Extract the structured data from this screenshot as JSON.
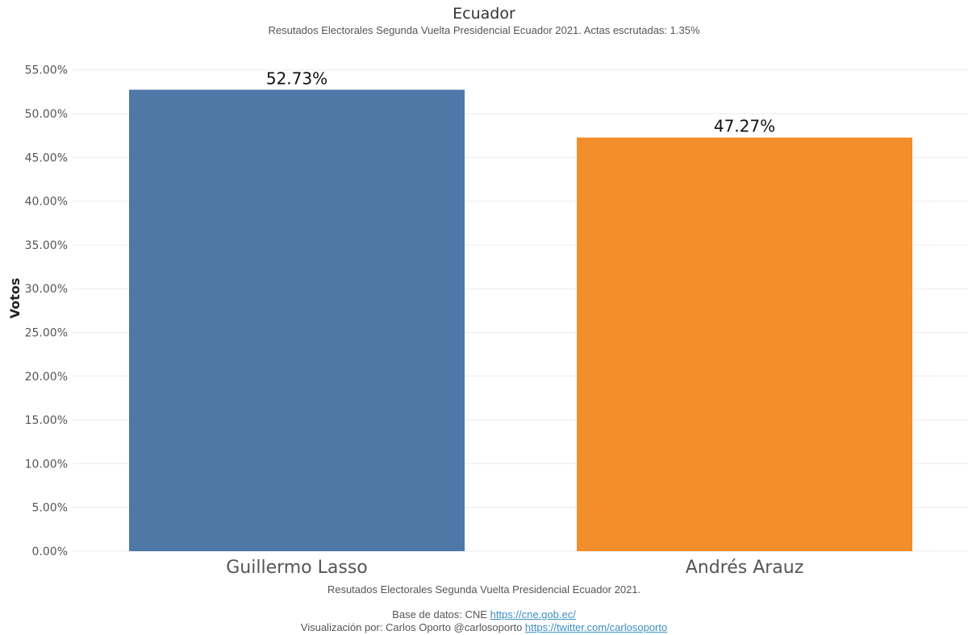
{
  "title": "Ecuador",
  "subtitle": "Resutados Electorales Segunda Vuelta Presidencial Ecuador 2021. Actas escrutadas: 1.35%",
  "caption": {
    "line1": "Resutados Electorales Segunda Vuelta Presidencial Ecuador 2021.",
    "line2_text": "Base de datos: CNE",
    "line2_link": "https://cne.gob.ec/",
    "line3_text": "Visualización por: Carlos Oporto @carlosoporto",
    "line3_link": "https://twitter.com/carlosoporto"
  },
  "chart_data": {
    "type": "bar",
    "categories": [
      "Guillermo Lasso",
      "Andrés Arauz"
    ],
    "values": [
      52.73,
      47.27
    ],
    "data_labels": [
      "52.73%",
      "47.27%"
    ],
    "colors": [
      "#4e79a7",
      "#f28e2b"
    ],
    "ylabel": "Votos",
    "xlabel": "",
    "ylim": [
      0,
      56.5
    ],
    "yticks": [
      0,
      5,
      10,
      15,
      20,
      25,
      30,
      35,
      40,
      45,
      50,
      55
    ],
    "ytick_labels": [
      "0.00%",
      "5.00%",
      "10.00%",
      "15.00%",
      "20.00%",
      "25.00%",
      "30.00%",
      "35.00%",
      "40.00%",
      "45.00%",
      "50.00%",
      "55.00%"
    ],
    "grid": true,
    "legend": "none"
  }
}
